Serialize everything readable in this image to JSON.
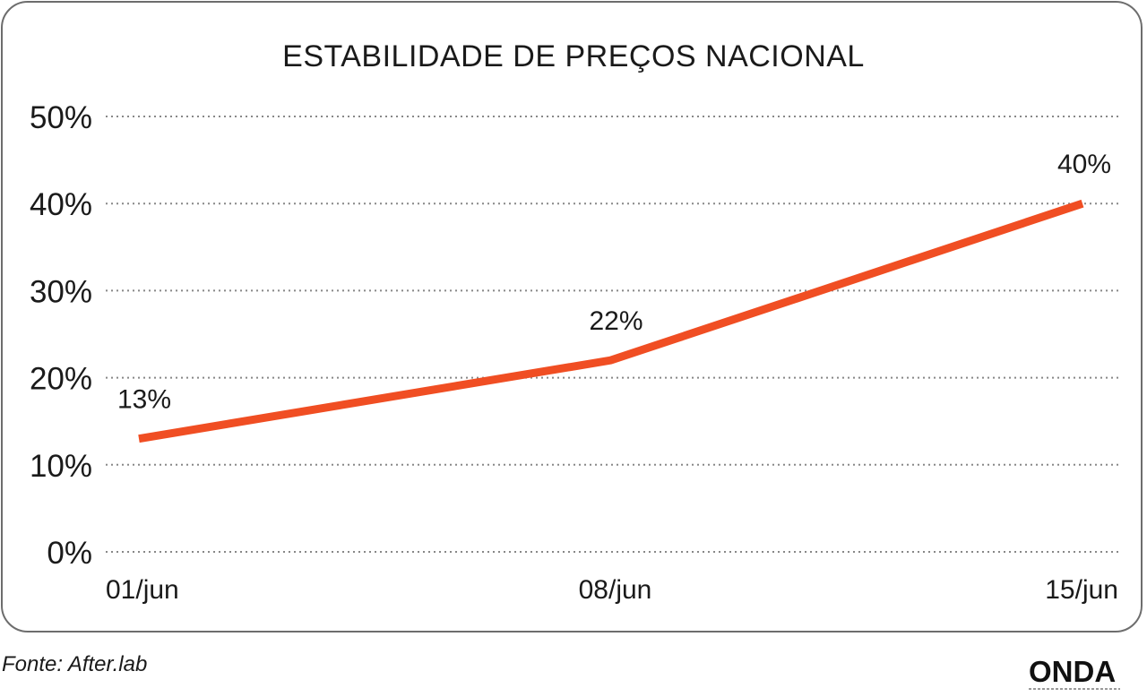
{
  "chart_data": {
    "type": "line",
    "title": "ESTABILIDADE DE PREÇOS NACIONAL",
    "categories": [
      "01/jun",
      "08/jun",
      "15/jun"
    ],
    "series": [
      {
        "values": [
          13,
          22,
          40
        ],
        "value_labels": [
          "13%",
          "22%",
          "40%"
        ],
        "color": "#f04e23"
      }
    ],
    "ylim": [
      0,
      50
    ],
    "yticks": [
      0,
      10,
      20,
      30,
      40,
      50
    ],
    "ytick_labels": [
      "0%",
      "10%",
      "20%",
      "30%",
      "40%",
      "50%"
    ],
    "grid": true,
    "grid_style": "dotted"
  },
  "footer": {
    "source": "Fonte: After.lab",
    "brand": "ONDA"
  },
  "colors": {
    "line": "#f04e23",
    "text": "#1a1a1a",
    "grid": "#888888",
    "border": "#6d6d6d"
  }
}
